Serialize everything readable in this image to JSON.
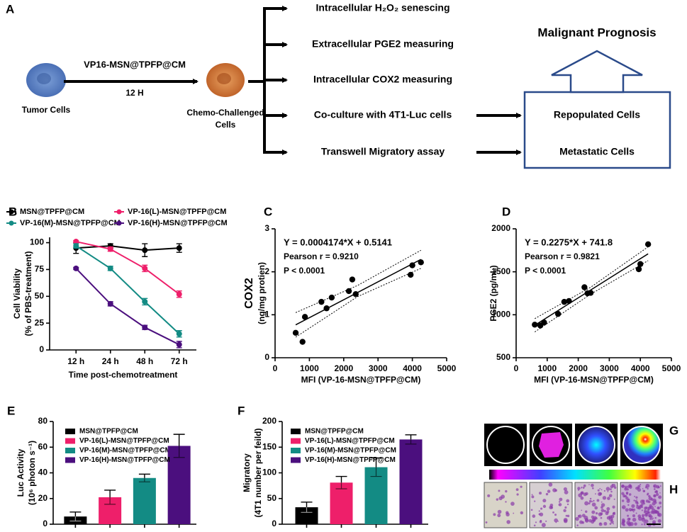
{
  "panel_a": {
    "label": "A",
    "tumor": "Tumor Cells",
    "treatment": "VP16-MSN@TPFP@CM",
    "duration": "12 H",
    "challenged": [
      "Chemo-Challenged",
      "Cells"
    ],
    "assays": [
      "Intracellular H₂O₂ senescing",
      "Extracellular PGE2 measuring",
      "Intracellular COX2 measuring",
      "Co-culture with 4T1-Luc cells",
      "Transwell Migratory assay"
    ],
    "outcomes": [
      "Repopulated Cells",
      "Metastatic Cells"
    ],
    "prognosis": "Malignant Prognosis"
  },
  "chart_data": [
    {
      "panel": "B",
      "type": "line",
      "categories": [
        "12 h",
        "24 h",
        "48 h",
        "72 h"
      ],
      "x_label": "Time post-chemotreatment",
      "y_label": [
        "Cell Viability",
        "(% of PBS-treatment)"
      ],
      "ylim": [
        0,
        105
      ],
      "yticks": [
        0,
        25,
        50,
        75,
        100
      ],
      "series": [
        {
          "name": "MSN@TPFP@CM",
          "color": "#000000",
          "values": [
            95,
            97,
            93,
            95
          ],
          "errors": [
            5,
            2,
            6,
            4
          ]
        },
        {
          "name": "VP-16(L)-MSN@TPFP@CM",
          "color": "#ee1f6a",
          "values": [
            101,
            94,
            76,
            52
          ],
          "errors": [
            1,
            2,
            3,
            3
          ]
        },
        {
          "name": "VP-16(M)-MSN@TPFP@CM",
          "color": "#138b84",
          "values": [
            97,
            76,
            45,
            15
          ],
          "errors": [
            2,
            2,
            3,
            3
          ]
        },
        {
          "name": "VP-16(H)-MSN@TPFP@CM",
          "color": "#4b0f7e",
          "values": [
            76,
            43,
            21,
            5
          ],
          "errors": [
            1,
            2,
            2,
            3
          ]
        }
      ]
    },
    {
      "panel": "C",
      "type": "scatter",
      "x_label": "MFI (VP-16-MSN@TPFP@CM)",
      "y_label": [
        "COX2",
        "(ng/mg protien)"
      ],
      "xlim": [
        0,
        5000
      ],
      "xticks": [
        0,
        1000,
        2000,
        3000,
        4000,
        5000
      ],
      "ylim": [
        0,
        3
      ],
      "yticks": [
        0,
        1,
        2,
        3
      ],
      "annotations": [
        "Y = 0.0004174*X + 0.5141",
        "Pearson r = 0.9210",
        "P < 0.0001"
      ],
      "x": [
        600,
        800,
        870,
        1350,
        1500,
        1650,
        2150,
        2250,
        2350,
        3950,
        4000,
        4250
      ],
      "y": [
        0.58,
        0.37,
        0.95,
        1.3,
        1.15,
        1.4,
        1.55,
        1.82,
        1.48,
        1.93,
        2.15,
        2.22
      ],
      "fit": {
        "x": [
          600,
          4250
        ],
        "y": [
          0.765,
          2.288
        ]
      },
      "band_upper": {
        "x": [
          600,
          2400,
          4250
        ],
        "y": [
          1.05,
          1.68,
          2.5
        ]
      },
      "band_lower": {
        "x": [
          600,
          2400,
          4250
        ],
        "y": [
          0.48,
          1.42,
          2.08
        ]
      }
    },
    {
      "panel": "D",
      "type": "scatter",
      "x_label": "MFI (VP-16-MSN@TPFP@CM)",
      "y_label": [
        "PGE2 (pg/mL)"
      ],
      "xlim": [
        0,
        5000
      ],
      "xticks": [
        0,
        1000,
        2000,
        3000,
        4000,
        5000
      ],
      "ylim": [
        500,
        2000
      ],
      "yticks": [
        500,
        1000,
        1500,
        2000
      ],
      "annotations": [
        "Y = 0.2275*X + 741.8",
        "Pearson r = 0.9821",
        "P < 0.0001"
      ],
      "x": [
        600,
        780,
        900,
        1350,
        1550,
        1700,
        2200,
        2300,
        2400,
        3950,
        4000,
        4250
      ],
      "y": [
        885,
        875,
        910,
        1010,
        1150,
        1160,
        1320,
        1250,
        1255,
        1530,
        1590,
        1820
      ],
      "fit": {
        "x": [
          600,
          4250
        ],
        "y": [
          878,
          1709
        ]
      },
      "band_upper": {
        "x": [
          600,
          2400,
          4250
        ],
        "y": [
          955,
          1320,
          1790
        ]
      },
      "band_lower": {
        "x": [
          600,
          2400,
          4250
        ],
        "y": [
          800,
          1240,
          1630
        ]
      }
    },
    {
      "panel": "E",
      "type": "bar",
      "y_label": [
        "Luc Activity",
        "(10⁶ photon s⁻¹)"
      ],
      "ylim": [
        0,
        80
      ],
      "yticks": [
        0,
        20,
        40,
        60,
        80
      ],
      "categories": [
        "MSN@TPFP@CM",
        "VP-16(L)-MSN@TPFP@CM",
        "VP-16(M)-MSN@TPFP@CM",
        "VP-16(H)-MSN@TPFP@CM"
      ],
      "colors": [
        "#000000",
        "#ee1f6a",
        "#138b84",
        "#4b0f7e"
      ],
      "values": [
        6,
        21,
        36,
        61
      ],
      "errors": [
        3.5,
        5.5,
        3,
        9
      ]
    },
    {
      "panel": "F",
      "type": "bar",
      "y_label": [
        "Migratory",
        "(4T1 number per feild)"
      ],
      "ylim": [
        0,
        200
      ],
      "yticks": [
        0,
        50,
        100,
        150,
        200
      ],
      "categories": [
        "MSN@TPFP@CM",
        "VP-16(L)-MSN@TPFP@CM",
        "VP-16(M)-MSN@TPFP@CM",
        "VP-16(H)-MSN@TPFP@CM"
      ],
      "colors": [
        "#000000",
        "#ee1f6a",
        "#138b84",
        "#4b0f7e"
      ],
      "values": [
        33,
        81,
        111,
        165
      ],
      "errors": [
        10,
        12,
        18,
        9
      ]
    }
  ],
  "panel_g": {
    "label": "G"
  },
  "panel_h": {
    "label": "H"
  }
}
